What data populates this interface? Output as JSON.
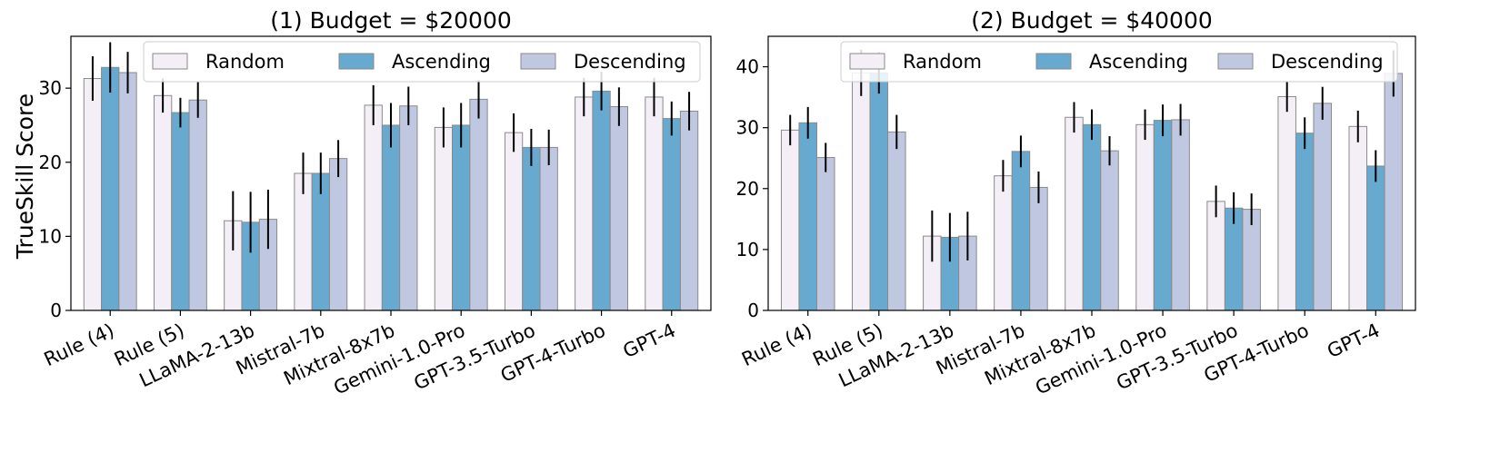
{
  "figure": {
    "ylabel": "TrueSkill Score"
  },
  "legend_labels": [
    "Random",
    "Ascending",
    "Descending"
  ],
  "colors": {
    "Random": "#f4eff6",
    "Ascending": "#67a9cf",
    "Descending": "#bfc8e0",
    "bar_edge": "#8a8a8a",
    "errorbar": "#000000"
  },
  "chart_data": [
    {
      "type": "bar",
      "title": "(1) Budget = $20000",
      "ylabel": "TrueSkill Score",
      "ylim": [
        0,
        37
      ],
      "yticks": [
        0,
        10,
        20,
        30
      ],
      "legend": "top",
      "categories": [
        "Rule (4)",
        "Rule (5)",
        "LLaMA-2-13b",
        "Mistral-7b",
        "Mixtral-8x7b",
        "Gemini-1.0-Pro",
        "GPT-3.5-Turbo",
        "GPT-4-Turbo",
        "GPT-4"
      ],
      "series": [
        {
          "name": "Random",
          "values": [
            31.3,
            29.0,
            12.1,
            18.5,
            27.7,
            24.7,
            24.0,
            28.8,
            28.8
          ],
          "errors": [
            3.0,
            2.3,
            4.0,
            2.8,
            2.7,
            2.7,
            2.6,
            2.6,
            2.6
          ]
        },
        {
          "name": "Ascending",
          "values": [
            32.8,
            26.7,
            11.9,
            18.5,
            25.0,
            25.0,
            22.0,
            29.6,
            25.9
          ],
          "errors": [
            3.4,
            2.0,
            4.1,
            2.8,
            3.0,
            3.0,
            2.5,
            2.6,
            2.3
          ]
        },
        {
          "name": "Descending",
          "values": [
            32.1,
            28.4,
            12.3,
            20.5,
            27.6,
            28.5,
            22.0,
            27.5,
            26.9
          ],
          "errors": [
            2.8,
            2.4,
            4.0,
            2.5,
            2.6,
            2.6,
            2.4,
            2.6,
            2.6
          ]
        }
      ]
    },
    {
      "type": "bar",
      "title": "(2) Budget = $40000",
      "ylim": [
        0,
        45
      ],
      "yticks": [
        0,
        10,
        20,
        30,
        40
      ],
      "legend": "top",
      "categories": [
        "Rule (4)",
        "Rule (5)",
        "LLaMA-2-13b",
        "Mistral-7b",
        "Mixtral-8x7b",
        "Gemini-1.0-Pro",
        "GPT-3.5-Turbo",
        "GPT-4-Turbo",
        "GPT-4"
      ],
      "series": [
        {
          "name": "Random",
          "values": [
            29.6,
            39.0,
            12.2,
            22.1,
            31.7,
            30.5,
            17.9,
            35.1,
            30.2
          ],
          "errors": [
            2.5,
            3.8,
            4.2,
            2.6,
            2.5,
            2.5,
            2.6,
            2.5,
            2.6
          ]
        },
        {
          "name": "Ascending",
          "values": [
            30.8,
            39.0,
            12.0,
            26.1,
            30.5,
            31.2,
            16.8,
            29.1,
            23.7
          ],
          "errors": [
            2.6,
            3.4,
            4.0,
            2.6,
            2.5,
            2.6,
            2.6,
            2.6,
            2.6
          ]
        },
        {
          "name": "Descending",
          "values": [
            25.1,
            29.3,
            12.2,
            20.2,
            26.2,
            31.3,
            16.6,
            34.0,
            38.9
          ],
          "errors": [
            2.4,
            2.8,
            4.0,
            2.6,
            2.4,
            2.6,
            2.6,
            2.7,
            3.8
          ]
        }
      ]
    }
  ]
}
